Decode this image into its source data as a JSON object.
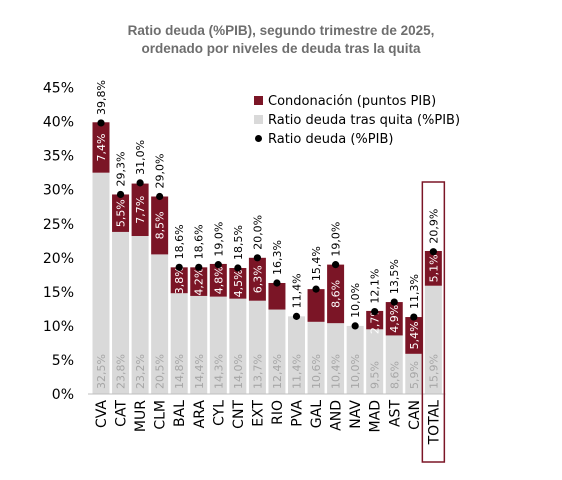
{
  "chart_data": {
    "type": "bar",
    "title": "Ratio deuda (%PIB), segundo trimestre de 2025,",
    "subtitle": "ordenado por niveles de deuda tras la quita",
    "categories": [
      "CVA",
      "CAT",
      "MUR",
      "CLM",
      "BAL",
      "ARA",
      "CYL",
      "CNT",
      "EXT",
      "RIO",
      "PVA",
      "GAL",
      "AND",
      "NAV",
      "MAD",
      "AST",
      "CAN",
      "TOTAL"
    ],
    "series": [
      {
        "name": "Ratio deuda tras quita (%PIB)",
        "values": [
          32.5,
          23.8,
          23.2,
          20.5,
          14.8,
          14.4,
          14.3,
          14.0,
          13.7,
          12.4,
          11.4,
          10.6,
          10.4,
          10.0,
          9.5,
          8.6,
          5.9,
          15.9
        ],
        "labels": [
          "32,5%",
          "23,8%",
          "23,2%",
          "20,5%",
          "14,8%",
          "14,4%",
          "14,3%",
          "14,0%",
          "13,7%",
          "12,4%",
          "11,4%",
          "10,6%",
          "10,4%",
          "10,0%",
          "9,5%",
          "8,6%",
          "5,9%",
          "15,9%"
        ]
      },
      {
        "name": "Condonación (puntos PIB)",
        "values": [
          7.4,
          5.5,
          7.7,
          8.5,
          3.8,
          4.2,
          4.8,
          4.5,
          6.3,
          3.9,
          0,
          4.8,
          8.6,
          0,
          2.7,
          4.9,
          5.4,
          5.1
        ],
        "labels": [
          "7,4%",
          "5,5%",
          "7,7%",
          "8,5%",
          "3,8%",
          "4,2%",
          "4,8%",
          "4,5%",
          "6,3%",
          "",
          "",
          "",
          "8,6%",
          "",
          "2,7%",
          "4,9%",
          "5,4%",
          "5,1%"
        ]
      },
      {
        "name": "Ratio deuda (%PIB)",
        "values": [
          39.8,
          29.3,
          31.0,
          29.0,
          18.6,
          18.6,
          19.0,
          18.5,
          20.0,
          16.3,
          11.4,
          15.4,
          19.0,
          10.0,
          12.1,
          13.5,
          11.3,
          20.9
        ],
        "labels": [
          "39,8%",
          "29,3%",
          "31,0%",
          "29,0%",
          "18,6%",
          "18,6%",
          "19,0%",
          "18,5%",
          "20,0%",
          "16,3%",
          "11,4%",
          "15,4%",
          "19,0%",
          "10,0%",
          "12,1%",
          "13,5%",
          "11,3%",
          "20,9%"
        ]
      }
    ],
    "yticks": [
      "0%",
      "5%",
      "10%",
      "15%",
      "20%",
      "25%",
      "30%",
      "35%",
      "40%",
      "45%"
    ],
    "ylim": [
      0,
      45
    ],
    "highlight": "TOTAL",
    "legend_position": "top-right",
    "colors": {
      "condonacion": "#7b1526",
      "tras_quita": "#d9d9d9",
      "ratio": "#000000",
      "label_light": "#a6a6a6",
      "highlight_box": "#7b1526"
    }
  }
}
